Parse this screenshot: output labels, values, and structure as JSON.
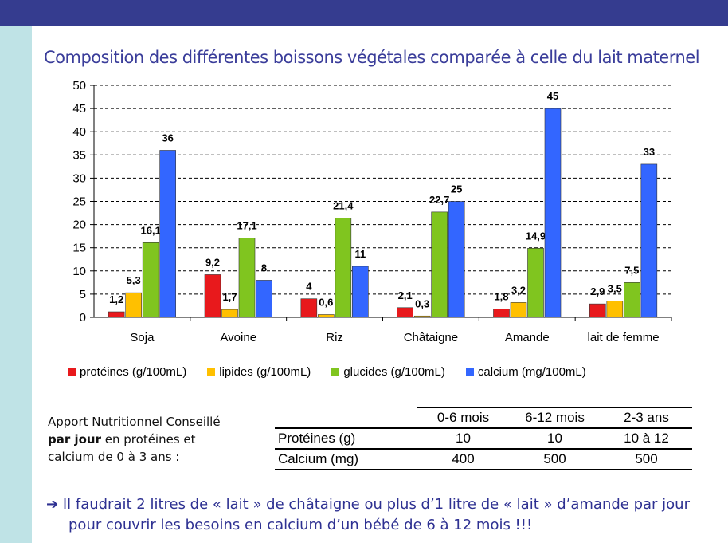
{
  "title": "Composition des différentes boissons végétales comparée à celle du lait maternel",
  "chart_data": {
    "type": "bar",
    "categories": [
      "Soja",
      "Avoine",
      "Riz",
      "Châtaigne",
      "Amande",
      "lait de femme"
    ],
    "series": [
      {
        "name": "protéines (g/100mL)",
        "color": "#e8191c",
        "values": [
          1.2,
          9.2,
          4,
          2.1,
          1.8,
          2.9
        ],
        "labels": [
          "1,2",
          "9,2",
          "4",
          "2,1",
          "1,8",
          "2,9"
        ]
      },
      {
        "name": "lipides (g/100mL)",
        "color": "#ffc000",
        "values": [
          5.3,
          1.7,
          0.6,
          0.3,
          3.2,
          3.5
        ],
        "labels": [
          "5,3",
          "1,7",
          "0,6",
          "0,3",
          "3,2",
          "3,5"
        ]
      },
      {
        "name": "glucides (g/100mL)",
        "color": "#80c51f",
        "values": [
          16.1,
          17.1,
          21.4,
          22.7,
          14.9,
          7.5
        ],
        "labels": [
          "16,1",
          "17,1",
          "21,4",
          "22,7",
          "14,9",
          "7,5"
        ]
      },
      {
        "name": "calcium (mg/100mL)",
        "color": "#3366ff",
        "values": [
          36,
          8,
          11,
          25,
          45,
          33
        ],
        "labels": [
          "36",
          "8",
          "11",
          "25",
          "45",
          "33"
        ]
      }
    ],
    "ylim": [
      0,
      50
    ],
    "yticks": [
      "0",
      "5",
      "10",
      "15",
      "20",
      "25",
      "30",
      "35",
      "40",
      "45",
      "50"
    ],
    "grid": true,
    "legend": "bottom"
  },
  "apport": {
    "line1": "Apport Nutritionnel Conseillé",
    "line2_bold": "par jour",
    "line2_rest": " en protéines et",
    "line3": "calcium de 0 à 3 ans :"
  },
  "table": {
    "headers": [
      "0-6 mois",
      "6-12 mois",
      "2-3 ans"
    ],
    "rows": [
      {
        "label": "Protéines (g)",
        "values": [
          "10",
          "10",
          "10 à 12"
        ]
      },
      {
        "label": "Calcium (mg)",
        "values": [
          "400",
          "500",
          "500"
        ]
      }
    ]
  },
  "note": {
    "arrow": "➔",
    "line1": "Il faudrait 2 litres de « lait » de châtaigne ou plus d’1 litre de « lait » d’amande par jour",
    "line2": "pour couvrir les besoins en calcium d’un bébé de 6 à 12 mois !!!"
  }
}
